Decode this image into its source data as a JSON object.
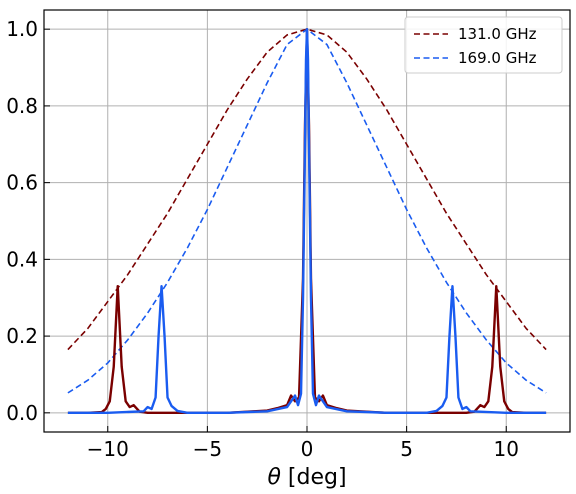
{
  "chart_data": {
    "type": "line",
    "xlabel_symbol": "θ",
    "xlabel_unit": " [deg]",
    "ylabel": "",
    "title": "",
    "xlim": [
      -13.2,
      13.2
    ],
    "ylim": [
      -0.05,
      1.05
    ],
    "xticks": [
      -10,
      -5,
      0,
      5,
      10
    ],
    "xtick_labels": [
      "−10",
      "−5",
      "0",
      "5",
      "10"
    ],
    "yticks": [
      0.0,
      0.2,
      0.4,
      0.6,
      0.8,
      1.0
    ],
    "ytick_labels": [
      "0.0",
      "0.2",
      "0.4",
      "0.6",
      "0.8",
      "1.0"
    ],
    "grid": true,
    "legend_position": "top-right",
    "legend": [
      {
        "label": "131.0 GHz",
        "series_index": 0
      },
      {
        "label": "169.0 GHz",
        "series_index": 1
      }
    ],
    "series": [
      {
        "name": "131.0 GHz",
        "style": "dashed",
        "color": "#7a0000",
        "x": [
          -12,
          -11,
          -10,
          -9,
          -8,
          -7,
          -6,
          -5,
          -4,
          -3,
          -2,
          -1,
          0,
          1,
          2,
          3,
          4,
          5,
          6,
          7,
          8,
          9,
          10,
          11,
          12
        ],
        "y": [
          0.165,
          0.22,
          0.29,
          0.36,
          0.44,
          0.52,
          0.61,
          0.7,
          0.79,
          0.87,
          0.94,
          0.985,
          1.0,
          0.985,
          0.94,
          0.87,
          0.79,
          0.7,
          0.61,
          0.52,
          0.44,
          0.36,
          0.29,
          0.22,
          0.165
        ]
      },
      {
        "name": "169.0 GHz",
        "style": "dashed",
        "color": "#1a5cf0",
        "x": [
          -12,
          -11,
          -10,
          -9,
          -8,
          -7,
          -6,
          -5,
          -4,
          -3,
          -2,
          -1,
          0,
          1,
          2,
          3,
          4,
          5,
          6,
          7,
          8,
          9,
          10,
          11,
          12
        ],
        "y": [
          0.052,
          0.085,
          0.13,
          0.19,
          0.26,
          0.34,
          0.43,
          0.53,
          0.64,
          0.75,
          0.86,
          0.96,
          1.0,
          0.96,
          0.86,
          0.75,
          0.64,
          0.53,
          0.43,
          0.34,
          0.26,
          0.19,
          0.13,
          0.085,
          0.052
        ]
      },
      {
        "name": "",
        "style": "solid",
        "color": "#7a0000",
        "x": [
          -12,
          -11,
          -10.3,
          -10.1,
          -9.9,
          -9.7,
          -9.5,
          -9.3,
          -9.1,
          -8.9,
          -8.7,
          -8.4,
          -8,
          -6,
          -4,
          -3,
          -2,
          -1.5,
          -1,
          -0.8,
          -0.6,
          -0.4,
          -0.2,
          -0.1,
          0,
          0.1,
          0.2,
          0.4,
          0.6,
          0.8,
          1,
          1.5,
          2,
          3,
          4,
          6,
          8,
          8.4,
          8.7,
          8.9,
          9.1,
          9.3,
          9.5,
          9.7,
          9.9,
          10.1,
          10.3,
          11,
          12
        ],
        "y": [
          0.0,
          0.0,
          0.002,
          0.01,
          0.03,
          0.12,
          0.33,
          0.12,
          0.03,
          0.015,
          0.02,
          0.003,
          0.0,
          0.0,
          0.0,
          0.003,
          0.006,
          0.012,
          0.02,
          0.045,
          0.03,
          0.04,
          0.35,
          0.75,
          1.0,
          0.75,
          0.35,
          0.04,
          0.03,
          0.045,
          0.02,
          0.012,
          0.006,
          0.003,
          0.0,
          0.0,
          0.0,
          0.003,
          0.02,
          0.015,
          0.03,
          0.12,
          0.33,
          0.12,
          0.03,
          0.01,
          0.002,
          0.0,
          0.0
        ]
      },
      {
        "name": "",
        "style": "solid",
        "color": "#1a5cf0",
        "x": [
          -12,
          -10,
          -8.2,
          -8,
          -7.8,
          -7.6,
          -7.45,
          -7.3,
          -7.15,
          -7.0,
          -6.8,
          -6.5,
          -6,
          -4,
          -2,
          -1,
          -0.6,
          -0.45,
          -0.3,
          -0.2,
          -0.1,
          -0.05,
          0,
          0.05,
          0.1,
          0.2,
          0.3,
          0.45,
          0.6,
          1,
          2,
          4,
          6,
          6.5,
          6.8,
          7.0,
          7.15,
          7.3,
          7.45,
          7.6,
          7.8,
          8,
          8.2,
          10,
          12
        ],
        "y": [
          0.0,
          0.0,
          0.004,
          0.015,
          0.01,
          0.04,
          0.2,
          0.33,
          0.2,
          0.04,
          0.018,
          0.005,
          0.0,
          0.0,
          0.004,
          0.015,
          0.045,
          0.02,
          0.05,
          0.3,
          0.7,
          0.92,
          1.0,
          0.92,
          0.7,
          0.3,
          0.05,
          0.02,
          0.045,
          0.015,
          0.004,
          0.0,
          0.0,
          0.005,
          0.018,
          0.04,
          0.2,
          0.33,
          0.2,
          0.04,
          0.01,
          0.015,
          0.004,
          0.0,
          0.0
        ]
      }
    ]
  }
}
